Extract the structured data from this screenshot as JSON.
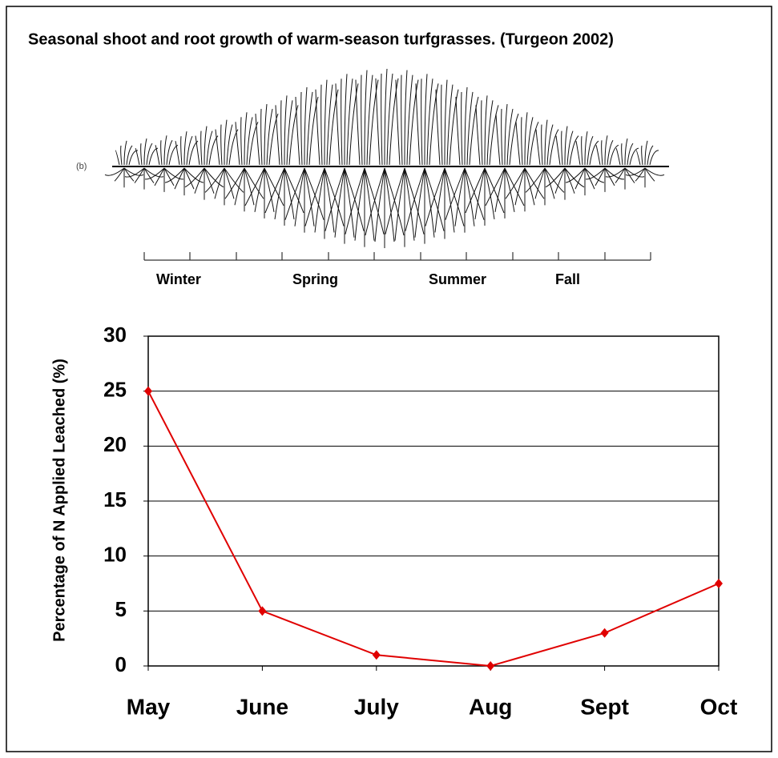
{
  "chart_data": {
    "type": "line",
    "title": "Seasonal shoot and root growth of warm-season turfgrasses. (Turgeon 2002)",
    "illustration_label": "(b)",
    "seasons": [
      "Winter",
      "Spring",
      "Summer",
      "Fall"
    ],
    "y_label": "Percentage of N Applied Leached (%)",
    "categories": [
      "May",
      "June",
      "July",
      "Aug",
      "Sept",
      "Oct"
    ],
    "series": [
      {
        "color": "#e00000",
        "values": [
          25,
          5,
          1,
          0,
          3,
          7.5
        ]
      }
    ],
    "ylim": [
      0,
      30
    ],
    "yticks": [
      0,
      5,
      10,
      15,
      20,
      25,
      30
    ],
    "grid": true
  }
}
